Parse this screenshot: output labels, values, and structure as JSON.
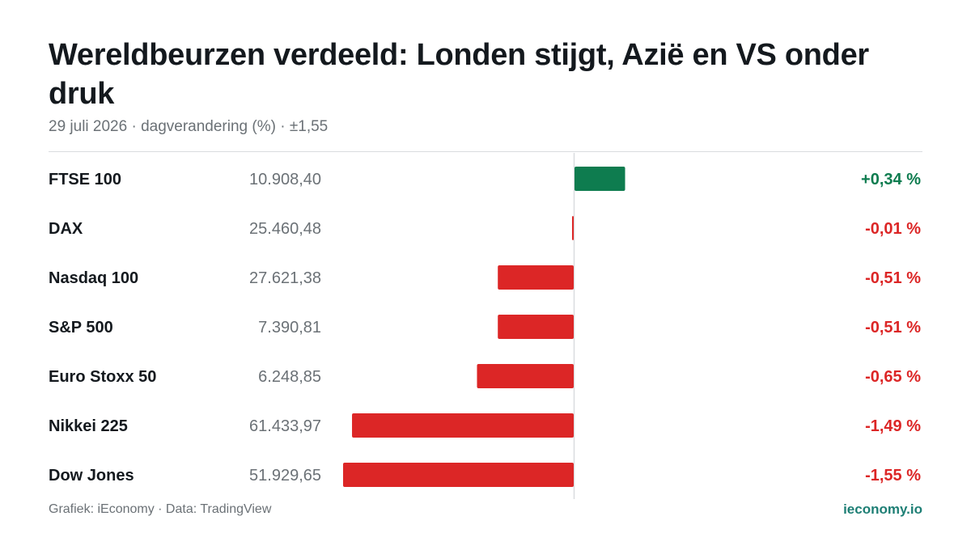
{
  "header": {
    "title": "Wereldbeurzen verdeeld: Londen stijgt, Azië en VS onder druk",
    "subtitle": "29 juli 2026 · dagverandering (%) · ±1,55"
  },
  "footer": {
    "source": "Grafiek: iEconomy · Data: TradingView",
    "brand": "ieconomy.io"
  },
  "colors": {
    "positive": "#0e7c4f",
    "negative": "#dc2626",
    "axis": "#d9dcdf"
  },
  "chart_data": {
    "type": "bar",
    "orientation": "horizontal",
    "xlim": [
      -1.55,
      1.55
    ],
    "rows": [
      {
        "name": "FTSE 100",
        "level": "10.908,40",
        "change": 0.34,
        "label": "+0,34 %"
      },
      {
        "name": "DAX",
        "level": "25.460,48",
        "change": -0.01,
        "label": "-0,01 %"
      },
      {
        "name": "Nasdaq 100",
        "level": "27.621,38",
        "change": -0.51,
        "label": "-0,51 %"
      },
      {
        "name": "S&P 500",
        "level": "7.390,81",
        "change": -0.51,
        "label": "-0,51 %"
      },
      {
        "name": "Euro Stoxx 50",
        "level": "6.248,85",
        "change": -0.65,
        "label": "-0,65 %"
      },
      {
        "name": "Nikkei 225",
        "level": "61.433,97",
        "change": -1.49,
        "label": "-1,49 %"
      },
      {
        "name": "Dow Jones",
        "level": "51.929,65",
        "change": -1.55,
        "label": "-1,55 %"
      }
    ]
  }
}
